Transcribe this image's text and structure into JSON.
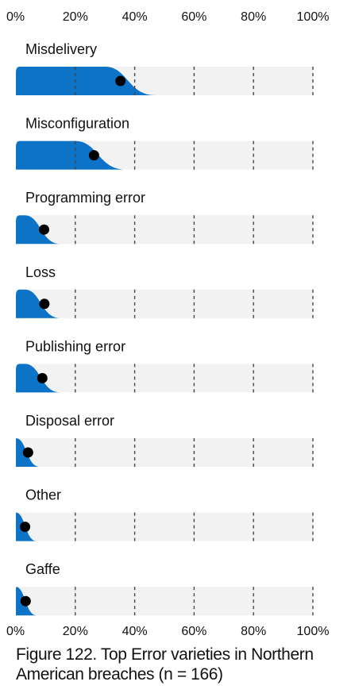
{
  "caption": "Figure 122. Top Error varieties in Northern American breaches (n = 166)",
  "colors": {
    "fill": "#0d73c6",
    "track": "#f2f2f2",
    "grid": "#444444",
    "dot": "#000000",
    "text": "#111111"
  },
  "chart_data": {
    "type": "slab",
    "title": "",
    "x_axis": {
      "min": 0,
      "max": 100,
      "unit": "%",
      "ticks": [
        "0%",
        "20%",
        "40%",
        "60%",
        "80%",
        "100%"
      ],
      "tick_values": [
        0,
        20,
        40,
        60,
        80,
        100
      ],
      "gridlines": "dashed"
    },
    "categories": [
      "Misdelivery",
      "Misconfiguration",
      "Programming error",
      "Loss",
      "Publishing error",
      "Disposal error",
      "Other",
      "Gaffe"
    ],
    "series": [
      {
        "values": [
          35.2,
          26.3,
          9.5,
          9.6,
          8.9,
          4.1,
          3.1,
          3.3
        ],
        "plateau_end": [
          30,
          20,
          3,
          3,
          3,
          0,
          0,
          0
        ],
        "tail_end": [
          47,
          37,
          15,
          15,
          15,
          8,
          7,
          7
        ]
      }
    ]
  }
}
